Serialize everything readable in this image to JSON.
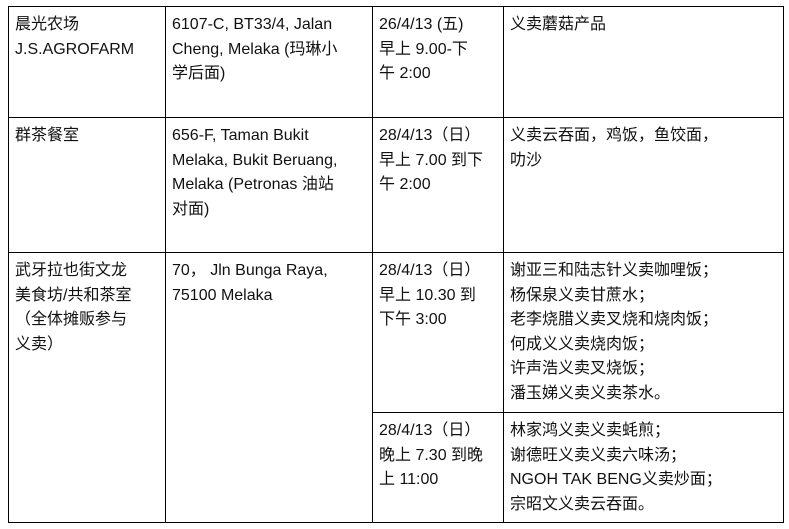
{
  "rows": [
    {
      "venue": [
        "晨光农场",
        "J.S.AGROFARM"
      ],
      "address": [
        "6107-C, BT33/4, Jalan",
        "Cheng, Melaka (玛琳小",
        "学后面)"
      ],
      "slots": [
        {
          "time": [
            "26/4/13 (五)",
            "早上 9.00-下",
            "午 2:00"
          ],
          "items": [
            "义卖蘑菇产品"
          ]
        }
      ]
    },
    {
      "venue": [
        "群茶餐室"
      ],
      "address": [
        "656-F, Taman Bukit",
        "Melaka, Bukit Beruang,",
        "Melaka (Petronas  油站",
        "对面)"
      ],
      "slots": [
        {
          "time": [
            "28/4/13（日）",
            "早上 7.00 到下",
            "午 2:00"
          ],
          "items": [
            "义卖云吞面，鸡饭，鱼饺面，",
            "叻沙"
          ]
        }
      ]
    },
    {
      "venue": [
        "武牙拉也街文龙",
        "美食坊/共和茶室",
        "（全体摊贩参与",
        "义卖）"
      ],
      "address": [
        "70，   Jln Bunga Raya,",
        "75100 Melaka"
      ],
      "slots": [
        {
          "time": [
            "28/4/13（日）",
            "早上 10.30 到",
            "下午 3:00"
          ],
          "items": [
            "谢亚三和陆志针义卖咖哩饭；",
            "杨保泉义卖甘蔗水；",
            "老李烧腊义卖叉烧和烧肉饭；",
            "何成义义卖烧肉饭；",
            "许声浩义卖叉烧饭；",
            "潘玉娣义卖义卖茶水。"
          ]
        },
        {
          "time": [
            "28/4/13（日）",
            "晚上 7.30 到晚",
            "上 11:00"
          ],
          "items": [
            "林家鸿义卖义卖蚝煎；",
            "谢德旺义卖义卖六味汤；",
            "NGOH TAK BENG义卖炒面；",
            "宗昭文义卖云吞面。"
          ]
        }
      ]
    }
  ]
}
